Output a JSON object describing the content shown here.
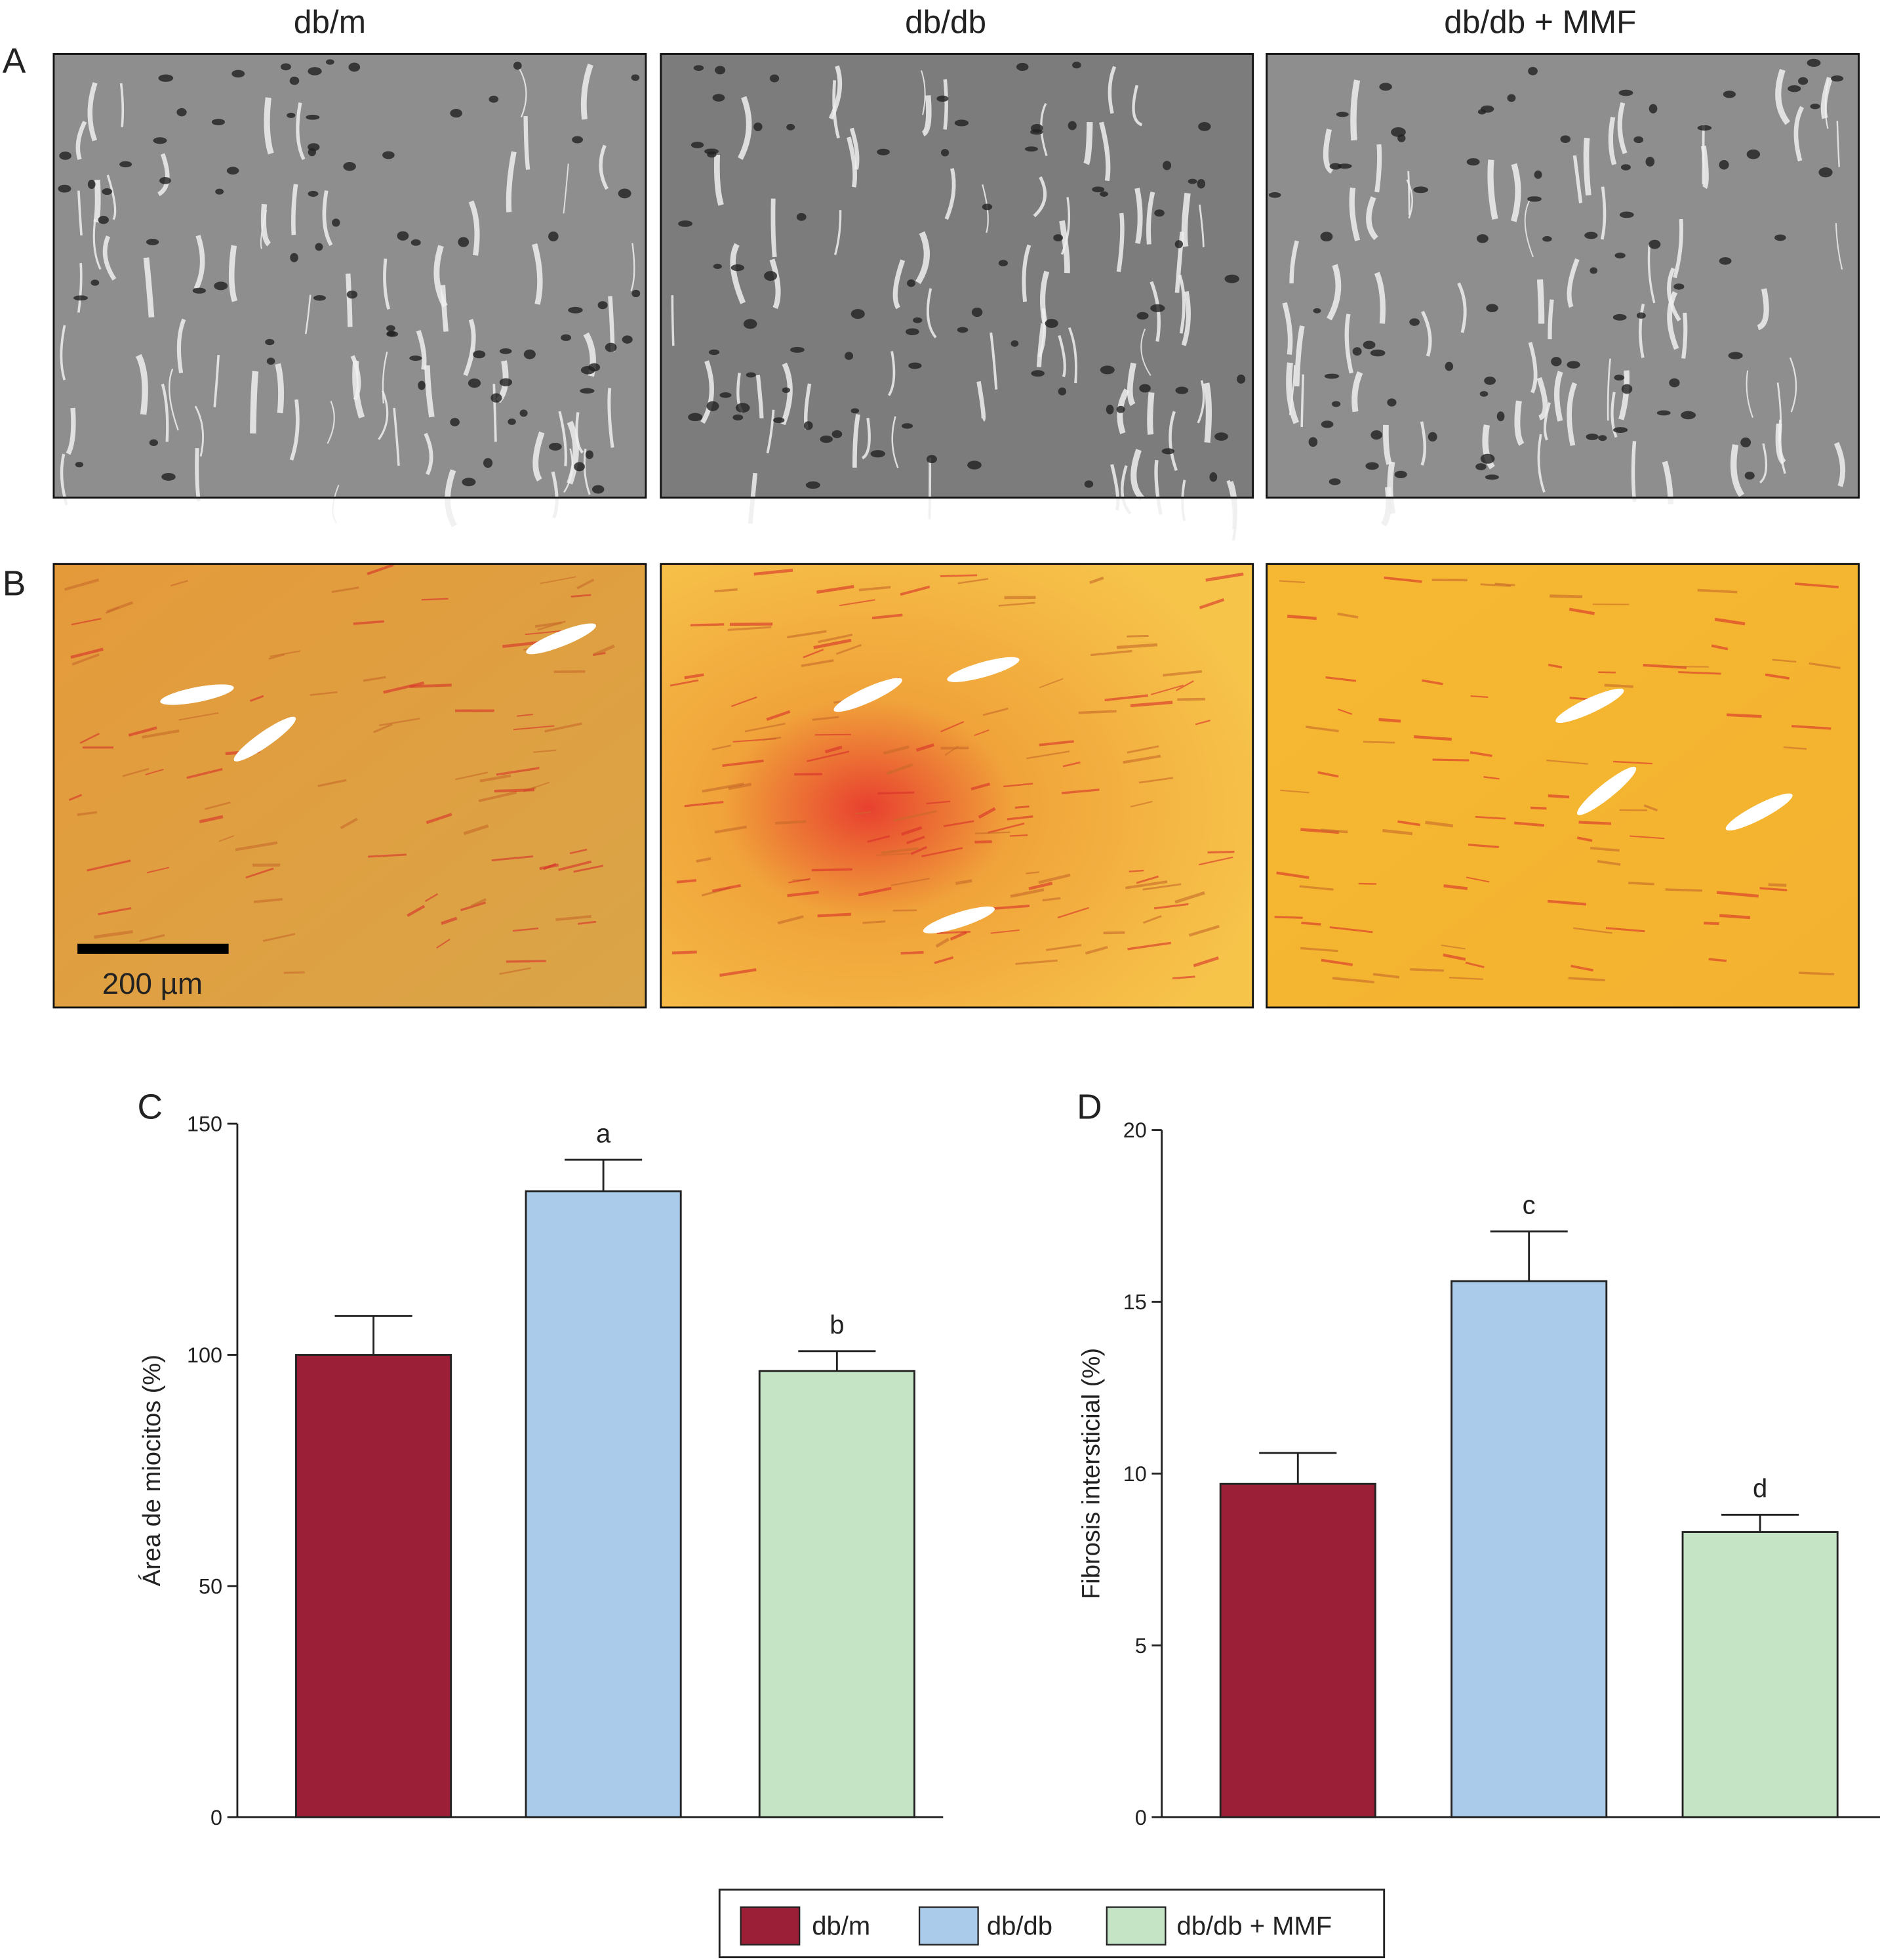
{
  "figure": {
    "column_titles": [
      "db/m",
      "db/db",
      "db/db + MMF"
    ],
    "panels": [
      "A",
      "B"
    ],
    "scale_bar": "200 µm"
  },
  "chart_data": [
    {
      "type": "bar",
      "panel": "C",
      "ylabel": "Área de miocitos (%)",
      "ylim": [
        0,
        150
      ],
      "yticks": [
        0,
        50,
        100,
        150
      ],
      "series": [
        {
          "name": "db/m",
          "color": "#9b1f37",
          "values": [
            100
          ],
          "errors": [
            8.4
          ]
        },
        {
          "name": "db/db",
          "color": "#abcbeb",
          "values": [
            135.4
          ],
          "errors": [
            6.8
          ],
          "label": "a"
        },
        {
          "name": "db/db + MMF",
          "color": "#c5e3c5",
          "values": [
            96.5
          ],
          "errors": [
            4.3
          ],
          "label": "b"
        }
      ]
    },
    {
      "type": "bar",
      "panel": "D",
      "ylabel": "Fibrosis intersticial (%)",
      "ylim": [
        0,
        20
      ],
      "yticks": [
        0,
        5,
        10,
        15,
        20
      ],
      "series": [
        {
          "color": "#9b1f37",
          "values": [
            9.7
          ],
          "errors": [
            0.9
          ]
        },
        {
          "color": "#abcbeb",
          "values": [
            15.6
          ],
          "errors": [
            1.45
          ],
          "label": "c"
        },
        {
          "color": "#c5e3c5",
          "values": [
            8.3
          ],
          "errors": [
            0.5
          ],
          "label": "d"
        }
      ]
    }
  ]
}
